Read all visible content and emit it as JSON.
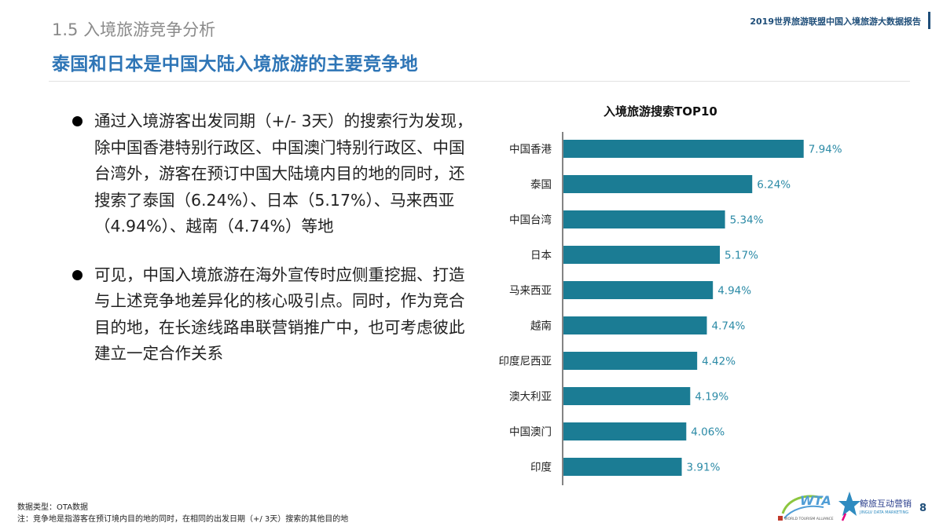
{
  "header": {
    "section_title": "1.5  入境旅游竞争分析",
    "report_name": "2019世界旅游联盟中国入境旅游大数据报告",
    "headline": "泰国和日本是中国大陆入境旅游的主要竞争地"
  },
  "bullets": [
    "通过入境游客出发同期（+/- 3天）的搜索行为发现，除中国香港特别行政区、中国澳门特别行政区、中国台湾外，游客在预订中国大陆境内目的地的同时，还搜索了泰国（6.24%）、日本（5.17%）、马来西亚（4.94%）、越南（4.74%）等地",
    "可见，中国入境旅游在海外宣传时应侧重挖掘、打造与上述竞争地差异化的核心吸引点。同时，作为竞合目的地，在长途线路串联营销推广中，也可考虑彼此建立一定合作关系"
  ],
  "chart_data": {
    "type": "bar",
    "orientation": "horizontal",
    "title": "入境旅游搜索TOP10",
    "categories": [
      "中国香港",
      "泰国",
      "中国台湾",
      "日本",
      "马来西亚",
      "越南",
      "印度尼西亚",
      "澳大利亚",
      "中国澳门",
      "印度"
    ],
    "values": [
      7.94,
      6.24,
      5.34,
      5.17,
      4.94,
      4.74,
      4.42,
      4.19,
      4.06,
      3.91
    ],
    "value_labels": [
      "7.94%",
      "6.24%",
      "5.34%",
      "5.17%",
      "4.94%",
      "4.74%",
      "4.42%",
      "4.19%",
      "4.06%",
      "3.91%"
    ],
    "unit": "%",
    "bar_color": "#1b7c94",
    "label_color": "#2b8aa6",
    "grid": false,
    "legend": "none"
  },
  "footer": {
    "data_type": "数据类型：OTA数据",
    "note": "注：竞争地是指游客在预订境内目的地的同时，在相同的出发日期（+/   3天）搜索的其他目的地",
    "page_number": "8",
    "logo_wta_text": "WTA",
    "logo_wta_sub": "WORLD TOURISM ALLIANCE",
    "logo_jy_text": "鲸旅互动营销",
    "logo_jy_sub": "JINGLV DATA MARKETING"
  },
  "colors": {
    "headline": "#2e75b6",
    "section_title": "#8a8a8a",
    "report_name": "#1f4e79"
  }
}
